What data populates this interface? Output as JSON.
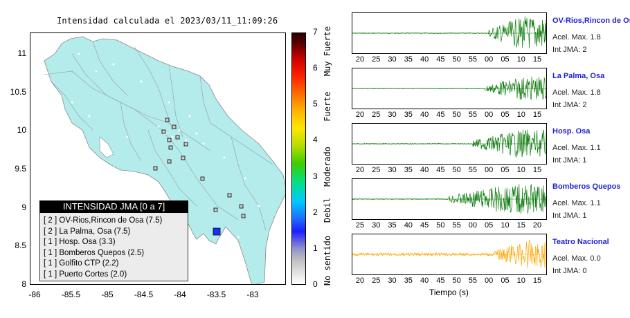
{
  "map": {
    "title": "Intensidad calculada el 2023/03/11_11:09:26",
    "y_ticks": [
      "11",
      "10.5",
      "10",
      "9.5",
      "9",
      "8.5",
      "8"
    ],
    "x_ticks": [
      "-86",
      "-85.5",
      "-85",
      "-84.5",
      "-84",
      "-83.5",
      "-83"
    ],
    "land_color": "#b4ecec",
    "epicenter_color": "#1a2fff"
  },
  "legend": {
    "header": "INTENSIDAD JMA [0 a 7]",
    "items": [
      "[ 2 ]  OV-Rios,Rincon de Osa (7.5)",
      "[ 2 ]  La Palma, Osa (7.5)",
      "[ 1 ]  Hosp. Osa (3.3)",
      "[ 1 ]  Bomberos Quepos (2.5)",
      "[ 1 ]  Golfito CTP (2.2)",
      "[ 1 ]  Puerto Cortes (2.0)"
    ]
  },
  "colorbar": {
    "ticks": [
      "7",
      "6",
      "5",
      "4",
      "3",
      "2",
      "1",
      "0"
    ],
    "categories": [
      "Muy Fuerte",
      "Fuerte",
      "Moderado",
      "Debil",
      "No sentido"
    ]
  },
  "stations": [
    {
      "name": "OV-Rios,Rincon de Osa",
      "accel": "Acel. Max. 1.8",
      "jma": "Int JMA: 2",
      "color": "#0a7a0a",
      "ticks": [
        "20",
        "25",
        "30",
        "35",
        "40",
        "45",
        "50",
        "55",
        "00",
        "05",
        "10",
        "15"
      ],
      "onset": 0.7,
      "amp": 0.85
    },
    {
      "name": "La Palma, Osa",
      "accel": "Acel. Max. 1.8",
      "jma": "Int JMA: 2",
      "color": "#0a7a0a",
      "ticks": [
        "20",
        "25",
        "30",
        "35",
        "40",
        "45",
        "50",
        "55",
        "00",
        "05",
        "10",
        "15"
      ],
      "onset": 0.68,
      "amp": 0.6
    },
    {
      "name": "Hosp. Osa",
      "accel": "Acel. Max. 1.1",
      "jma": "Int JMA: 1",
      "color": "#0a7a0a",
      "ticks": [
        "20",
        "25",
        "30",
        "35",
        "40",
        "45",
        "50",
        "55",
        "00",
        "05",
        "10",
        "15"
      ],
      "onset": 0.62,
      "amp": 0.7
    },
    {
      "name": "Bomberos Quepos",
      "accel": "Acel. Max. 1.1",
      "jma": "Int JMA: 1",
      "color": "#0a7a0a",
      "ticks": [
        "25",
        "30",
        "35",
        "40",
        "45",
        "50",
        "55",
        "00",
        "05",
        "10",
        "15",
        "20"
      ],
      "onset": 0.5,
      "amp": 0.75
    },
    {
      "name": "Teatro Nacional",
      "accel": "Acel. Max. 0.0",
      "jma": "Int JMA: 0",
      "color": "#ffa500",
      "ticks": [
        "20",
        "25",
        "30",
        "35",
        "40",
        "45",
        "50",
        "55",
        "00",
        "05",
        "10",
        "15"
      ],
      "onset": 0.73,
      "amp": 0.7
    }
  ],
  "time_label": "Tiempo (s)"
}
